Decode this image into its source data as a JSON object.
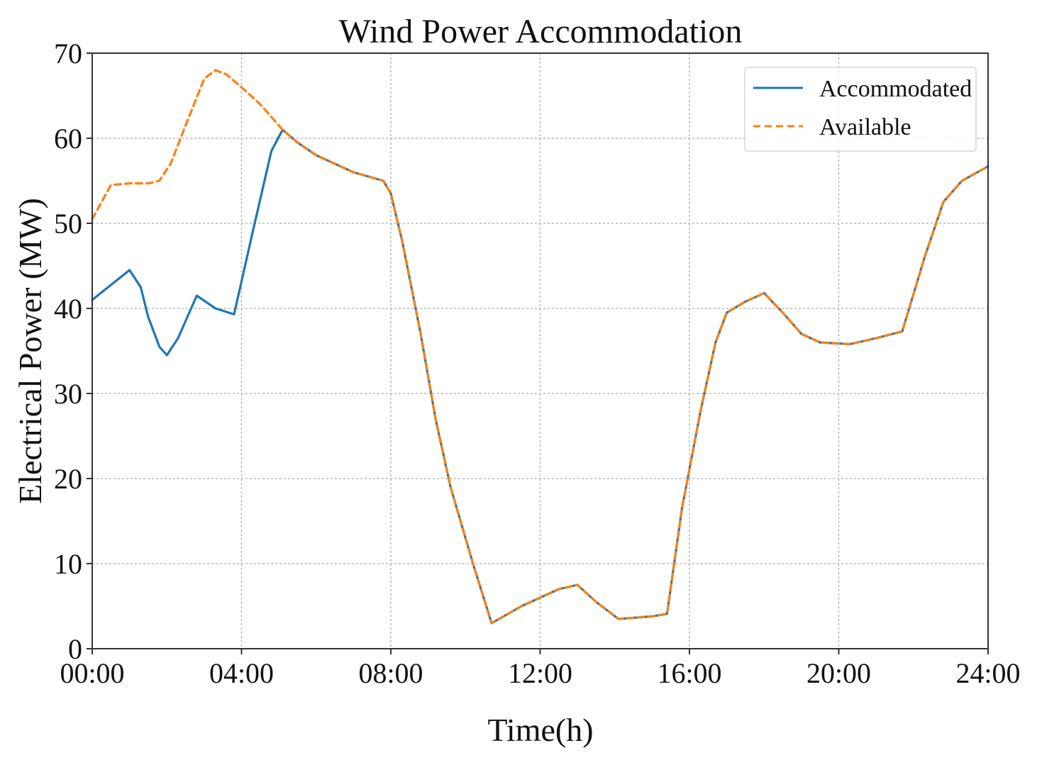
{
  "chart_data": {
    "type": "line",
    "title": "Wind Power Accommodation",
    "xlabel": "Time(h)",
    "ylabel": "Electrical Power (MW)",
    "xlim": [
      0,
      24
    ],
    "ylim": [
      0,
      70
    ],
    "x_ticks": [
      0,
      4,
      8,
      12,
      16,
      20,
      24
    ],
    "x_tick_labels": [
      "00:00",
      "04:00",
      "08:00",
      "12:00",
      "16:00",
      "20:00",
      "24:00"
    ],
    "y_ticks": [
      0,
      10,
      20,
      30,
      40,
      50,
      60,
      70
    ],
    "y_tick_labels": [
      "0",
      "10",
      "20",
      "30",
      "40",
      "50",
      "60",
      "70"
    ],
    "grid": true,
    "legend_position": "top-right",
    "series": [
      {
        "name": "Accommodated",
        "color": "#1f77b4",
        "style": "solid",
        "points": [
          [
            0.0,
            41.0
          ],
          [
            1.0,
            44.5
          ],
          [
            1.3,
            42.5
          ],
          [
            1.5,
            39.0
          ],
          [
            1.8,
            35.5
          ],
          [
            2.0,
            34.5
          ],
          [
            2.3,
            36.5
          ],
          [
            2.8,
            41.5
          ],
          [
            3.3,
            40.0
          ],
          [
            3.8,
            39.3
          ],
          [
            4.3,
            49.0
          ],
          [
            4.8,
            58.5
          ],
          [
            5.1,
            61.0
          ],
          [
            5.5,
            59.5
          ],
          [
            6.0,
            58.0
          ],
          [
            7.0,
            56.0
          ],
          [
            7.8,
            55.0
          ],
          [
            8.0,
            53.5
          ],
          [
            8.3,
            48.0
          ],
          [
            8.8,
            37.0
          ],
          [
            9.2,
            27.0
          ],
          [
            9.6,
            19.0
          ],
          [
            10.2,
            10.0
          ],
          [
            10.7,
            3.0
          ],
          [
            11.5,
            5.0
          ],
          [
            12.5,
            7.0
          ],
          [
            13.0,
            7.5
          ],
          [
            13.5,
            5.5
          ],
          [
            14.1,
            3.5
          ],
          [
            15.0,
            3.8
          ],
          [
            15.4,
            4.1
          ],
          [
            15.8,
            16.5
          ],
          [
            16.3,
            28.0
          ],
          [
            16.7,
            36.0
          ],
          [
            17.0,
            39.5
          ],
          [
            17.5,
            40.8
          ],
          [
            18.0,
            41.8
          ],
          [
            18.5,
            39.5
          ],
          [
            19.0,
            37.0
          ],
          [
            19.5,
            36.0
          ],
          [
            20.3,
            35.8
          ],
          [
            21.0,
            36.5
          ],
          [
            21.7,
            37.3
          ],
          [
            22.3,
            46.0
          ],
          [
            22.8,
            52.5
          ],
          [
            23.3,
            55.0
          ],
          [
            24.0,
            56.7
          ]
        ]
      },
      {
        "name": "Available",
        "color": "#ff7f0e",
        "style": "dashed",
        "points": [
          [
            0.0,
            50.5
          ],
          [
            0.5,
            54.5
          ],
          [
            1.0,
            54.7
          ],
          [
            1.5,
            54.7
          ],
          [
            1.8,
            55.0
          ],
          [
            2.1,
            57.0
          ],
          [
            2.5,
            61.5
          ],
          [
            3.0,
            67.0
          ],
          [
            3.3,
            68.0
          ],
          [
            3.6,
            67.5
          ],
          [
            4.0,
            66.0
          ],
          [
            4.5,
            64.0
          ],
          [
            5.1,
            61.0
          ],
          [
            5.5,
            59.5
          ],
          [
            6.0,
            58.0
          ],
          [
            7.0,
            56.0
          ],
          [
            7.8,
            55.0
          ],
          [
            8.0,
            53.5
          ],
          [
            8.3,
            48.0
          ],
          [
            8.8,
            37.0
          ],
          [
            9.2,
            27.0
          ],
          [
            9.6,
            19.0
          ],
          [
            10.2,
            10.0
          ],
          [
            10.7,
            3.0
          ],
          [
            11.5,
            5.0
          ],
          [
            12.5,
            7.0
          ],
          [
            13.0,
            7.5
          ],
          [
            13.5,
            5.5
          ],
          [
            14.1,
            3.5
          ],
          [
            15.0,
            3.8
          ],
          [
            15.4,
            4.1
          ],
          [
            15.8,
            16.5
          ],
          [
            16.3,
            28.0
          ],
          [
            16.7,
            36.0
          ],
          [
            17.0,
            39.5
          ],
          [
            17.5,
            40.8
          ],
          [
            18.0,
            41.8
          ],
          [
            18.5,
            39.5
          ],
          [
            19.0,
            37.0
          ],
          [
            19.5,
            36.0
          ],
          [
            20.3,
            35.8
          ],
          [
            21.0,
            36.5
          ],
          [
            21.7,
            37.3
          ],
          [
            22.3,
            46.0
          ],
          [
            22.8,
            52.5
          ],
          [
            23.3,
            55.0
          ],
          [
            24.0,
            56.7
          ]
        ]
      }
    ]
  }
}
